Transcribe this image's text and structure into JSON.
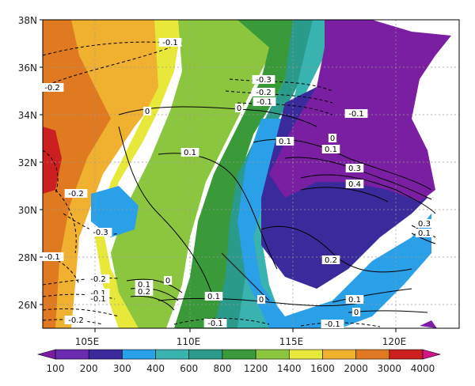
{
  "map": {
    "lon_ticks": [
      "105E",
      "110E",
      "115E",
      "120E"
    ],
    "lat_ticks": [
      "38N",
      "36N",
      "34N",
      "32N",
      "30N",
      "28N",
      "26N"
    ]
  },
  "contour_labels": [
    "-0.1",
    "-0.2",
    "-0.3",
    "-0.2",
    "-0.1",
    "0",
    "0",
    "-0.1",
    "0.1",
    "0",
    "0.1",
    "0.1",
    "0.3",
    "0.4",
    "-0.2",
    "-0.3",
    "0.3",
    "0.1",
    "-0.1",
    "0.2",
    "-0.2",
    "-0.1",
    "-0.1",
    "0.1",
    "0.2",
    "0",
    "0.1",
    "0",
    "0.1",
    "0",
    "-0.2",
    "-0.1",
    "-0.1"
  ],
  "colorbar": {
    "labels": [
      "100",
      "200",
      "300",
      "400",
      "600",
      "800",
      "1200",
      "1400",
      "1600",
      "2000",
      "3000",
      "4000"
    ],
    "colors": [
      "#7a1fa2",
      "#6a2bb0",
      "#3a2b9c",
      "#2aa0e8",
      "#39b3b0",
      "#2a9a8a",
      "#3a9a3a",
      "#8cc63f",
      "#e8e83a",
      "#f0b030",
      "#e07a20",
      "#cc2020",
      "#d4148a"
    ]
  }
}
